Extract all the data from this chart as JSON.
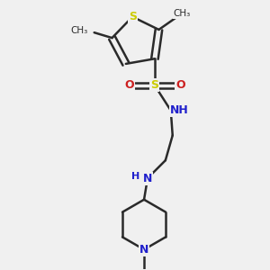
{
  "bg_color": "#f0f0f0",
  "bond_color": "#2a2a2a",
  "S_color": "#cccc00",
  "N_color": "#2020cc",
  "O_color": "#cc2020",
  "line_width": 1.8,
  "figsize": [
    3.0,
    3.0
  ],
  "dpi": 100,
  "xlim": [
    0,
    3.0
  ],
  "ylim": [
    0,
    3.0
  ]
}
